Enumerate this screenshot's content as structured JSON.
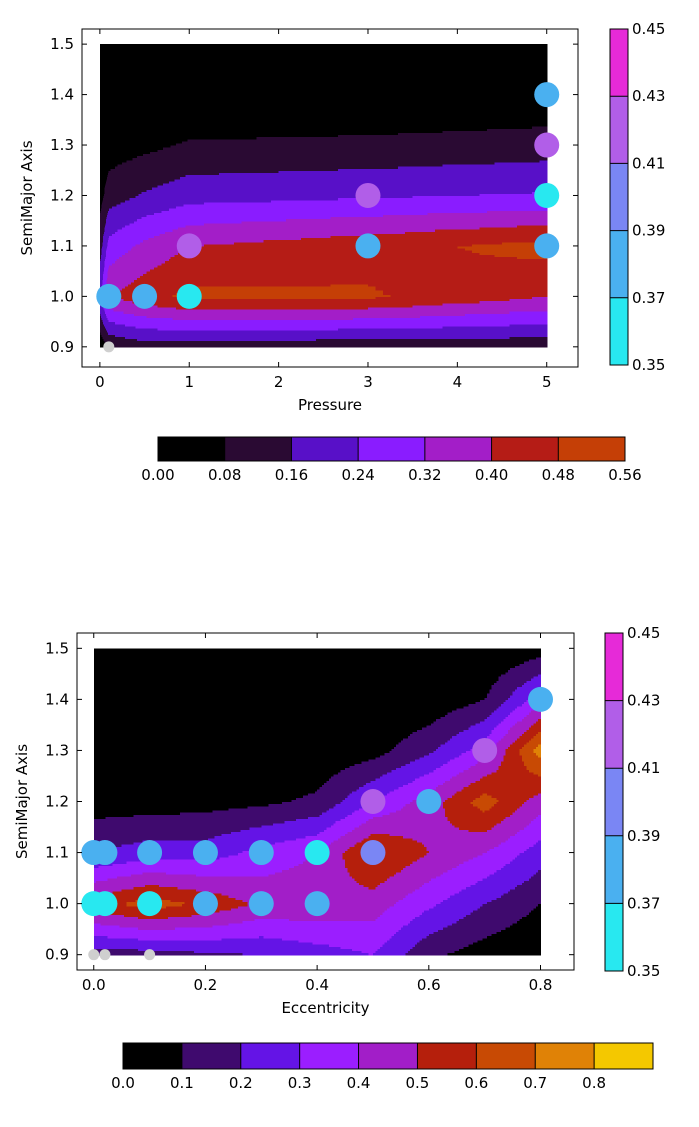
{
  "chart_data": [
    {
      "type": "contour",
      "xlabel": "Pressure",
      "ylabel": "SemiMajor Axis",
      "xlim": [
        -0.2,
        5.35
      ],
      "ylim": [
        0.86,
        1.53
      ],
      "xticks": [
        0,
        1,
        2,
        3,
        4,
        5
      ],
      "yticks": [
        0.9,
        1.0,
        1.1,
        1.2,
        1.3,
        1.4,
        1.5
      ],
      "xtick_labels": [
        "0",
        "1",
        "2",
        "3",
        "4",
        "5"
      ],
      "ytick_labels": [
        "0.9",
        "1.0",
        "1.1",
        "1.2",
        "1.3",
        "1.4",
        "1.5"
      ],
      "grid_x": [
        0,
        0.1,
        0.5,
        1,
        3,
        5
      ],
      "grid_y": [
        0.9,
        1.0,
        1.1,
        1.2,
        1.3,
        1.4,
        1.5
      ],
      "z": [
        [
          0.02,
          0.08,
          0.12,
          0.11,
          0.1,
          0.1
        ],
        [
          0.22,
          0.4,
          0.45,
          0.5,
          0.49,
          0.4
        ],
        [
          0.12,
          0.27,
          0.34,
          0.4,
          0.45,
          0.51
        ],
        [
          0.05,
          0.12,
          0.17,
          0.21,
          0.23,
          0.25
        ],
        [
          0.01,
          0.04,
          0.06,
          0.09,
          0.1,
          0.12
        ],
        [
          0.0,
          0.0,
          0.0,
          0.0,
          0.0,
          0.01
        ],
        [
          0.0,
          0.0,
          0.0,
          0.0,
          0.0,
          0.0
        ]
      ],
      "levels": [
        0.0,
        0.08,
        0.16,
        0.24,
        0.32,
        0.4,
        0.48,
        0.56
      ],
      "level_colors": [
        "#000000",
        "#2a0a33",
        "#5810c8",
        "#8a1cff",
        "#a31ec8",
        "#b51c16",
        "#c53f06"
      ],
      "level_labels": [
        "0.00",
        "0.08",
        "0.16",
        "0.24",
        "0.32",
        "0.40",
        "0.48",
        "0.56"
      ],
      "points": [
        {
          "x": 0.1,
          "y": 0.9,
          "v": null,
          "size": "small"
        },
        {
          "x": 0.1,
          "y": 1.0,
          "v": 0.385
        },
        {
          "x": 0.5,
          "y": 1.0,
          "v": 0.372
        },
        {
          "x": 1.0,
          "y": 1.0,
          "v": 0.355
        },
        {
          "x": 1.0,
          "y": 1.1,
          "v": 0.415
        },
        {
          "x": 3.0,
          "y": 1.1,
          "v": 0.382
        },
        {
          "x": 3.0,
          "y": 1.2,
          "v": 0.418
        },
        {
          "x": 5.0,
          "y": 1.1,
          "v": 0.378
        },
        {
          "x": 5.0,
          "y": 1.2,
          "v": 0.36
        },
        {
          "x": 5.0,
          "y": 1.3,
          "v": 0.422
        },
        {
          "x": 5.0,
          "y": 1.4,
          "v": 0.375
        }
      ],
      "point_cbar": {
        "levels": [
          0.35,
          0.37,
          0.39,
          0.41,
          0.43,
          0.45
        ],
        "colors": [
          "#28e8f0",
          "#4ab0f0",
          "#7a86f4",
          "#b15ee8",
          "#e62ad8"
        ],
        "labels": [
          "0.35",
          "0.37",
          "0.39",
          "0.41",
          "0.43",
          "0.45"
        ]
      }
    },
    {
      "type": "contour",
      "xlabel": "Eccentricity",
      "ylabel": "SemiMajor Axis",
      "xlim": [
        -0.03,
        0.86
      ],
      "ylim": [
        0.87,
        1.53
      ],
      "xticks": [
        0.0,
        0.2,
        0.4,
        0.6,
        0.8
      ],
      "yticks": [
        0.9,
        1.0,
        1.1,
        1.2,
        1.3,
        1.4,
        1.5
      ],
      "xtick_labels": [
        "0.0",
        "0.2",
        "0.4",
        "0.6",
        "0.8"
      ],
      "ytick_labels": [
        "0.9",
        "1.0",
        "1.1",
        "1.2",
        "1.3",
        "1.4",
        "1.5"
      ],
      "grid_x": [
        0,
        0.1,
        0.2,
        0.3,
        0.4,
        0.5,
        0.6,
        0.7,
        0.8
      ],
      "grid_y": [
        0.9,
        1.0,
        1.1,
        1.2,
        1.3,
        1.4,
        1.5
      ],
      "z": [
        [
          0.15,
          0.15,
          0.18,
          0.2,
          0.25,
          0.3,
          0.12,
          0.05,
          0.0
        ],
        [
          0.55,
          0.65,
          0.58,
          0.48,
          0.48,
          0.45,
          0.32,
          0.2,
          0.1
        ],
        [
          0.2,
          0.25,
          0.25,
          0.33,
          0.4,
          0.62,
          0.5,
          0.4,
          0.25
        ],
        [
          0.05,
          0.05,
          0.06,
          0.08,
          0.12,
          0.3,
          0.45,
          0.65,
          0.45
        ],
        [
          0.0,
          0.0,
          0.0,
          0.0,
          0.02,
          0.06,
          0.18,
          0.35,
          0.75
        ],
        [
          0.0,
          0.0,
          0.0,
          0.0,
          0.0,
          0.0,
          0.02,
          0.1,
          0.35
        ],
        [
          0.0,
          0.0,
          0.0,
          0.0,
          0.0,
          0.0,
          0.0,
          0.0,
          0.05
        ]
      ],
      "levels": [
        0.0,
        0.1,
        0.2,
        0.3,
        0.4,
        0.5,
        0.6,
        0.7,
        0.8
      ],
      "level_colors": [
        "#000000",
        "#3f0a6e",
        "#6414e6",
        "#9b1eff",
        "#a21ec8",
        "#b51f0c",
        "#c84a04",
        "#e08206",
        "#f4c800"
      ],
      "level_labels": [
        "0.0",
        "0.1",
        "0.2",
        "0.3",
        "0.4",
        "0.5",
        "0.6",
        "0.7",
        "0.8"
      ],
      "points": [
        {
          "x": 0.0,
          "y": 0.9,
          "v": null,
          "size": "small"
        },
        {
          "x": 0.02,
          "y": 0.9,
          "v": null,
          "size": "small"
        },
        {
          "x": 0.1,
          "y": 0.9,
          "v": null,
          "size": "small"
        },
        {
          "x": 0.0,
          "y": 1.0,
          "v": 0.355
        },
        {
          "x": 0.02,
          "y": 1.0,
          "v": 0.36
        },
        {
          "x": 0.1,
          "y": 1.0,
          "v": 0.365
        },
        {
          "x": 0.2,
          "y": 1.0,
          "v": 0.372
        },
        {
          "x": 0.3,
          "y": 1.0,
          "v": 0.382
        },
        {
          "x": 0.4,
          "y": 1.0,
          "v": 0.375
        },
        {
          "x": 0.0,
          "y": 1.1,
          "v": 0.385
        },
        {
          "x": 0.02,
          "y": 1.1,
          "v": 0.385
        },
        {
          "x": 0.1,
          "y": 1.1,
          "v": 0.385
        },
        {
          "x": 0.2,
          "y": 1.1,
          "v": 0.38
        },
        {
          "x": 0.3,
          "y": 1.1,
          "v": 0.385
        },
        {
          "x": 0.4,
          "y": 1.1,
          "v": 0.365
        },
        {
          "x": 0.5,
          "y": 1.1,
          "v": 0.39
        },
        {
          "x": 0.5,
          "y": 1.2,
          "v": 0.418
        },
        {
          "x": 0.6,
          "y": 1.2,
          "v": 0.385
        },
        {
          "x": 0.7,
          "y": 1.3,
          "v": 0.418
        },
        {
          "x": 0.8,
          "y": 1.4,
          "v": 0.375
        }
      ],
      "point_cbar": {
        "levels": [
          0.35,
          0.37,
          0.39,
          0.41,
          0.43,
          0.45
        ],
        "colors": [
          "#28e8f0",
          "#4ab0f0",
          "#7a86f4",
          "#b15ee8",
          "#e62ad8"
        ],
        "labels": [
          "0.35",
          "0.37",
          "0.39",
          "0.41",
          "0.43",
          "0.45"
        ]
      }
    }
  ]
}
